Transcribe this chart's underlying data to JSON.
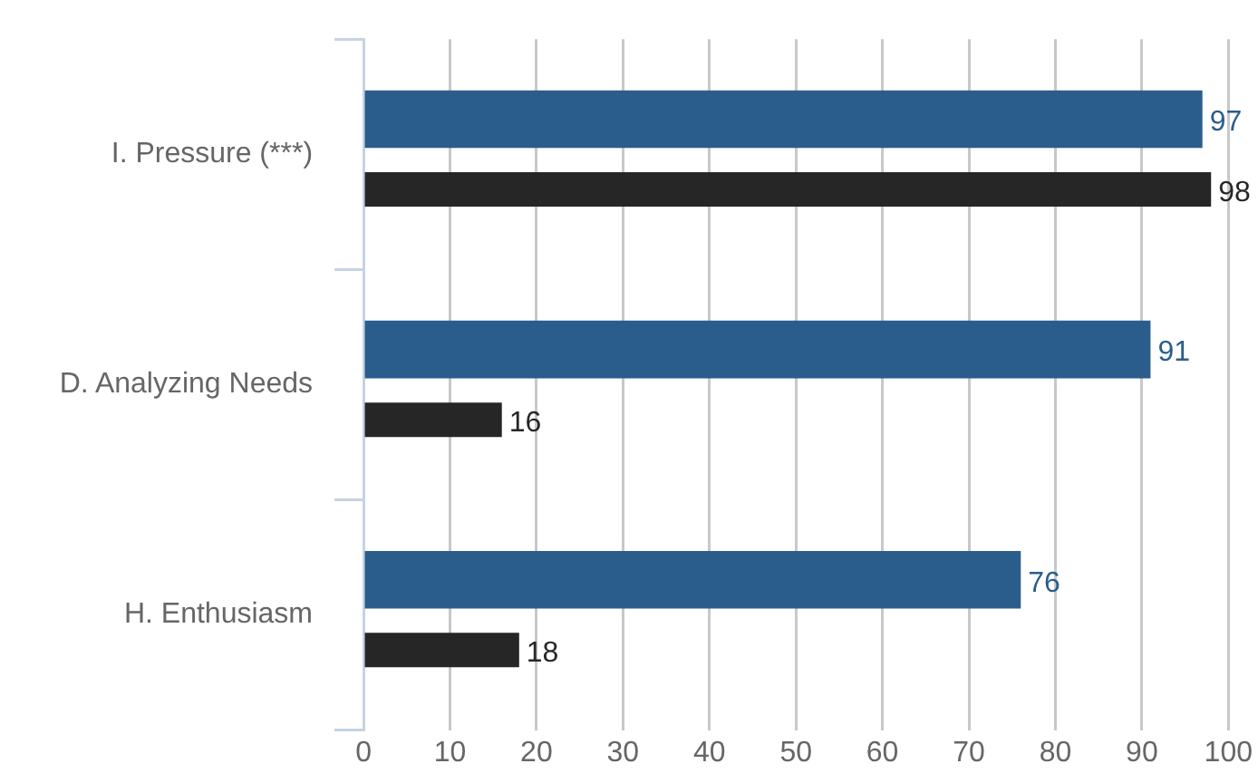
{
  "chart_data": {
    "type": "bar",
    "orientation": "horizontal",
    "categories": [
      "I. Pressure (***)",
      "D. Analyzing Needs",
      "H. Enthusiasm"
    ],
    "series": [
      {
        "color": "#2a5d8c",
        "values": [
          97,
          91,
          76
        ]
      },
      {
        "color": "#262626",
        "values": [
          98,
          16,
          18
        ]
      }
    ],
    "xlim": [
      0,
      100
    ],
    "xticks": [
      0,
      10,
      20,
      30,
      40,
      50,
      60,
      70,
      80,
      90,
      100
    ],
    "grid": "x",
    "data_labels": true,
    "legend": false
  }
}
